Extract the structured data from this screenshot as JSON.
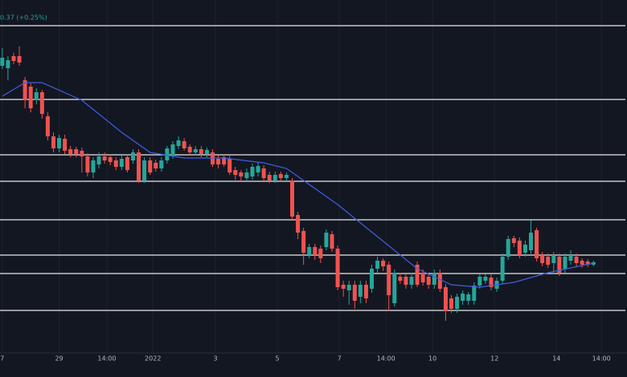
{
  "chart_data": {
    "type": "candlestick",
    "status_text": "0.37 (+0.25%)",
    "xlim": [
      -0.4,
      109.9
    ],
    "ylim": [
      0,
      440
    ],
    "xticks": [
      {
        "value": 0,
        "label": "7"
      },
      {
        "value": 10,
        "label": "29"
      },
      {
        "value": 18.4,
        "label": "14:00"
      },
      {
        "value": 26.5,
        "label": "2022"
      },
      {
        "value": 37.5,
        "label": "3"
      },
      {
        "value": 48.4,
        "label": "5"
      },
      {
        "value": 59.3,
        "label": "7"
      },
      {
        "value": 67.5,
        "label": "14:00"
      },
      {
        "value": 75.7,
        "label": "10"
      },
      {
        "value": 86.6,
        "label": "12"
      },
      {
        "value": 97.5,
        "label": "14"
      },
      {
        "value": 105.4,
        "label": "14:00"
      }
    ],
    "up_color": "#26a69a",
    "down_color": "#ef5350",
    "levels": [
      408,
      316,
      247,
      214,
      166,
      122,
      99,
      53
    ],
    "level_color": "#e8e8e8",
    "open": [
      358,
      355,
      370,
      370,
      340,
      332,
      315,
      325,
      295,
      270,
      255,
      267,
      254,
      254,
      252,
      245,
      225,
      235,
      245,
      244,
      240,
      232,
      244,
      240,
      250,
      215,
      240,
      237,
      230,
      240,
      245,
      258,
      264,
      257,
      250,
      254,
      248,
      250,
      242,
      244,
      242,
      228,
      225,
      218,
      220,
      225,
      230,
      222,
      215,
      223,
      218,
      215,
      172,
      152,
      122,
      132,
      130,
      132,
      148,
      130,
      85,
      78,
      85,
      70,
      85,
      80,
      105,
      115,
      110,
      62,
      95,
      95,
      85,
      110,
      100,
      95,
      85,
      100,
      82,
      68,
      55,
      65,
      65,
      65,
      84,
      90,
      94,
      80,
      90,
      120,
      143,
      140,
      125,
      128,
      153,
      122,
      120,
      112,
      120,
      105,
      115,
      120,
      115,
      114,
      110
    ],
    "high": [
      380,
      370,
      374,
      382,
      344,
      336,
      330,
      328,
      300,
      275,
      272,
      272,
      258,
      257,
      256,
      249,
      244,
      250,
      250,
      248,
      244,
      246,
      248,
      254,
      254,
      244,
      244,
      241,
      244,
      258,
      264,
      270,
      268,
      260,
      258,
      258,
      256,
      254,
      246,
      248,
      246,
      232,
      228,
      230,
      236,
      238,
      234,
      226,
      226,
      226,
      225,
      218,
      176,
      156,
      136,
      136,
      134,
      154,
      152,
      134,
      90,
      90,
      90,
      90,
      90,
      110,
      120,
      118,
      114,
      104,
      100,
      98,
      100,
      114,
      104,
      98,
      104,
      104,
      86,
      72,
      74,
      78,
      76,
      88,
      98,
      98,
      98,
      94,
      124,
      146,
      146,
      144,
      140,
      165,
      156,
      126,
      124,
      126,
      124,
      124,
      128,
      124,
      118,
      117,
      115
    ],
    "low": [
      354,
      340,
      360,
      358,
      305,
      300,
      310,
      292,
      265,
      250,
      250,
      248,
      244,
      244,
      225,
      220,
      218,
      230,
      236,
      234,
      228,
      228,
      225,
      236,
      212,
      212,
      222,
      226,
      226,
      236,
      242,
      254,
      252,
      246,
      246,
      244,
      244,
      232,
      230,
      232,
      222,
      216,
      214,
      214,
      216,
      220,
      214,
      212,
      212,
      214,
      214,
      166,
      142,
      110,
      118,
      116,
      112,
      128,
      126,
      78,
      70,
      60,
      55,
      62,
      62,
      75,
      100,
      102,
      52,
      58,
      86,
      80,
      80,
      82,
      84,
      80,
      80,
      76,
      40,
      50,
      50,
      60,
      60,
      60,
      80,
      86,
      78,
      76,
      86,
      116,
      132,
      118,
      120,
      124,
      114,
      108,
      106,
      98,
      96,
      100,
      110,
      108,
      106,
      107,
      108
    ],
    "close": [
      368,
      365,
      364,
      362,
      315,
      305,
      325,
      298,
      270,
      255,
      268,
      252,
      248,
      248,
      245,
      225,
      240,
      245,
      240,
      238,
      232,
      242,
      228,
      250,
      215,
      240,
      225,
      230,
      240,
      255,
      260,
      265,
      255,
      250,
      254,
      248,
      253,
      235,
      235,
      235,
      225,
      222,
      220,
      225,
      232,
      233,
      218,
      215,
      222,
      218,
      222,
      170,
      150,
      125,
      132,
      122,
      118,
      150,
      130,
      82,
      80,
      85,
      65,
      85,
      68,
      105,
      115,
      108,
      72,
      100,
      90,
      85,
      95,
      85,
      88,
      85,
      100,
      80,
      52,
      55,
      70,
      74,
      73,
      84,
      95,
      95,
      82,
      90,
      120,
      142,
      137,
      122,
      135,
      150,
      118,
      112,
      110,
      122,
      100,
      120,
      122,
      112,
      110,
      110,
      113
    ],
    "moving_average": {
      "color": "#3f5ee0",
      "x": [
        0,
        4,
        7,
        14,
        21,
        26,
        32,
        39,
        46,
        50,
        53,
        59,
        66,
        73,
        79,
        84,
        90,
        96,
        104
      ],
      "values": [
        320,
        337,
        337,
        315,
        275,
        250,
        243,
        243,
        237,
        230,
        215,
        185,
        145,
        105,
        85,
        82,
        88,
        100,
        112
      ]
    }
  }
}
